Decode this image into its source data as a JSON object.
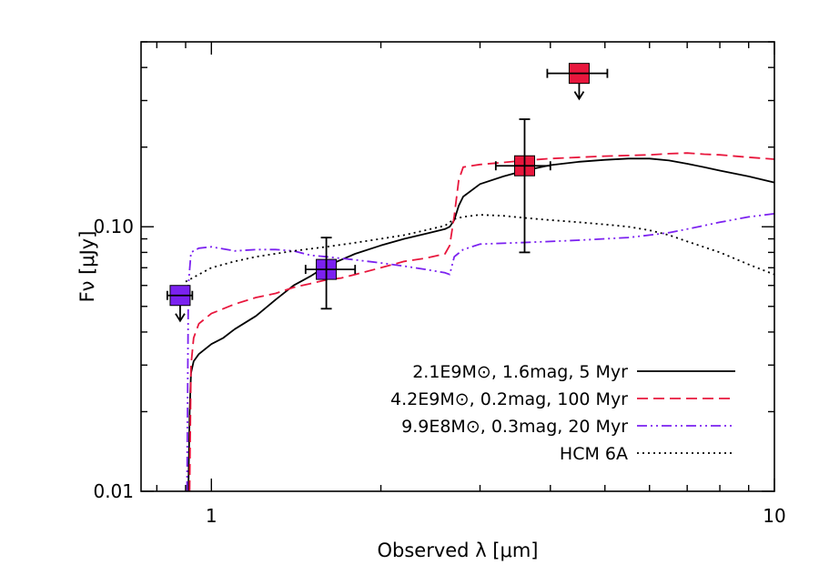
{
  "chart_data": {
    "type": "line",
    "xlabel": "Observed λ [μm]",
    "ylabel": "Fν [μJy]",
    "x_scale": "log",
    "y_scale": "log",
    "xlim": [
      0.75,
      10
    ],
    "ylim": [
      0.01,
      0.5
    ],
    "x_ticks": [
      {
        "value": 1,
        "label": "1"
      },
      {
        "value": 10,
        "label": "10"
      }
    ],
    "y_ticks": [
      {
        "value": 0.01,
        "label": "0.01"
      },
      {
        "value": 0.1,
        "label": "0.10"
      }
    ],
    "grid": false,
    "legend_position": "bottom-right",
    "series": [
      {
        "name": "2.1E9M⊙, 1.6mag, 5 Myr",
        "color": "#000000",
        "dash": "solid",
        "x": [
          0.91,
          0.915,
          0.92,
          0.93,
          0.95,
          1.0,
          1.05,
          1.1,
          1.2,
          1.3,
          1.4,
          1.5,
          1.6,
          1.7,
          1.8,
          2.0,
          2.2,
          2.4,
          2.6,
          2.65,
          2.7,
          2.75,
          2.8,
          3.0,
          3.3,
          3.6,
          4.0,
          4.5,
          5.0,
          5.5,
          6.0,
          6.5,
          7.0,
          7.5,
          8.0,
          9.0,
          10.0
        ],
        "y": [
          0.01,
          0.02,
          0.028,
          0.031,
          0.033,
          0.036,
          0.038,
          0.041,
          0.046,
          0.053,
          0.06,
          0.065,
          0.071,
          0.075,
          0.079,
          0.085,
          0.09,
          0.094,
          0.098,
          0.1,
          0.106,
          0.12,
          0.13,
          0.145,
          0.155,
          0.163,
          0.171,
          0.176,
          0.179,
          0.181,
          0.181,
          0.178,
          0.173,
          0.168,
          0.163,
          0.155,
          0.147
        ]
      },
      {
        "name": "4.2E9M⊙, 0.2mag, 100 Myr",
        "color": "#e8173d",
        "dash": "dashed",
        "x": [
          0.915,
          0.92,
          0.93,
          0.95,
          1.0,
          1.1,
          1.2,
          1.3,
          1.4,
          1.5,
          1.6,
          1.7,
          1.8,
          2.0,
          2.2,
          2.4,
          2.6,
          2.65,
          2.7,
          2.75,
          2.8,
          3.0,
          3.3,
          3.6,
          4.0,
          4.5,
          5.0,
          5.5,
          6.0,
          6.5,
          7.0,
          7.5,
          8.0,
          9.0,
          10.0
        ],
        "y": [
          0.01,
          0.03,
          0.038,
          0.043,
          0.047,
          0.051,
          0.054,
          0.056,
          0.059,
          0.061,
          0.063,
          0.064,
          0.066,
          0.07,
          0.074,
          0.076,
          0.079,
          0.085,
          0.11,
          0.15,
          0.168,
          0.172,
          0.175,
          0.178,
          0.181,
          0.183,
          0.185,
          0.186,
          0.187,
          0.189,
          0.19,
          0.188,
          0.187,
          0.183,
          0.18
        ]
      },
      {
        "name": "9.9E8M⊙, 0.3mag, 20 Myr",
        "color": "#7b21f0",
        "dash": "dashdotdot",
        "x": [
          0.905,
          0.91,
          0.92,
          0.95,
          1.0,
          1.1,
          1.2,
          1.3,
          1.4,
          1.5,
          1.6,
          1.8,
          2.0,
          2.2,
          2.4,
          2.6,
          2.65,
          2.7,
          2.8,
          3.0,
          3.5,
          4.0,
          4.5,
          5.0,
          5.5,
          6.0,
          6.5,
          7.0,
          8.0,
          9.0,
          10.0
        ],
        "y": [
          0.01,
          0.06,
          0.08,
          0.083,
          0.084,
          0.081,
          0.082,
          0.082,
          0.081,
          0.078,
          0.077,
          0.075,
          0.073,
          0.071,
          0.069,
          0.067,
          0.066,
          0.077,
          0.082,
          0.086,
          0.087,
          0.088,
          0.089,
          0.09,
          0.091,
          0.093,
          0.095,
          0.098,
          0.104,
          0.109,
          0.112
        ]
      },
      {
        "name": "HCM 6A",
        "color": "#000000",
        "dash": "dotted",
        "x": [
          0.9,
          0.95,
          1.0,
          1.1,
          1.2,
          1.4,
          1.6,
          1.8,
          2.0,
          2.2,
          2.4,
          2.6,
          2.7,
          2.8,
          3.0,
          3.3,
          3.6,
          4.0,
          4.5,
          5.0,
          5.5,
          6.0,
          6.5,
          7.0,
          8.0,
          9.0,
          10.0
        ],
        "y": [
          0.062,
          0.066,
          0.07,
          0.074,
          0.077,
          0.081,
          0.084,
          0.087,
          0.09,
          0.093,
          0.097,
          0.101,
          0.107,
          0.109,
          0.111,
          0.11,
          0.108,
          0.106,
          0.104,
          0.102,
          0.1,
          0.097,
          0.093,
          0.088,
          0.08,
          0.072,
          0.066
        ]
      }
    ],
    "data_points": [
      {
        "x": 0.88,
        "y": 0.055,
        "xerr": 0.045,
        "color": "#7b21f0",
        "upper_limit": true
      },
      {
        "x": 1.6,
        "y": 0.069,
        "xerr_lo": 0.13,
        "xerr_hi": 0.2,
        "yerr_lo": 0.02,
        "yerr_hi": 0.022,
        "color": "#7b21f0",
        "upper_limit": false
      },
      {
        "x": 3.6,
        "y": 0.17,
        "xerr": 0.4,
        "yerr_lo": 0.09,
        "yerr_hi": 0.085,
        "color": "#e8173d",
        "upper_limit": false
      },
      {
        "x": 4.5,
        "y": 0.38,
        "xerr": 0.55,
        "color": "#e8173d",
        "upper_limit": true
      }
    ]
  }
}
